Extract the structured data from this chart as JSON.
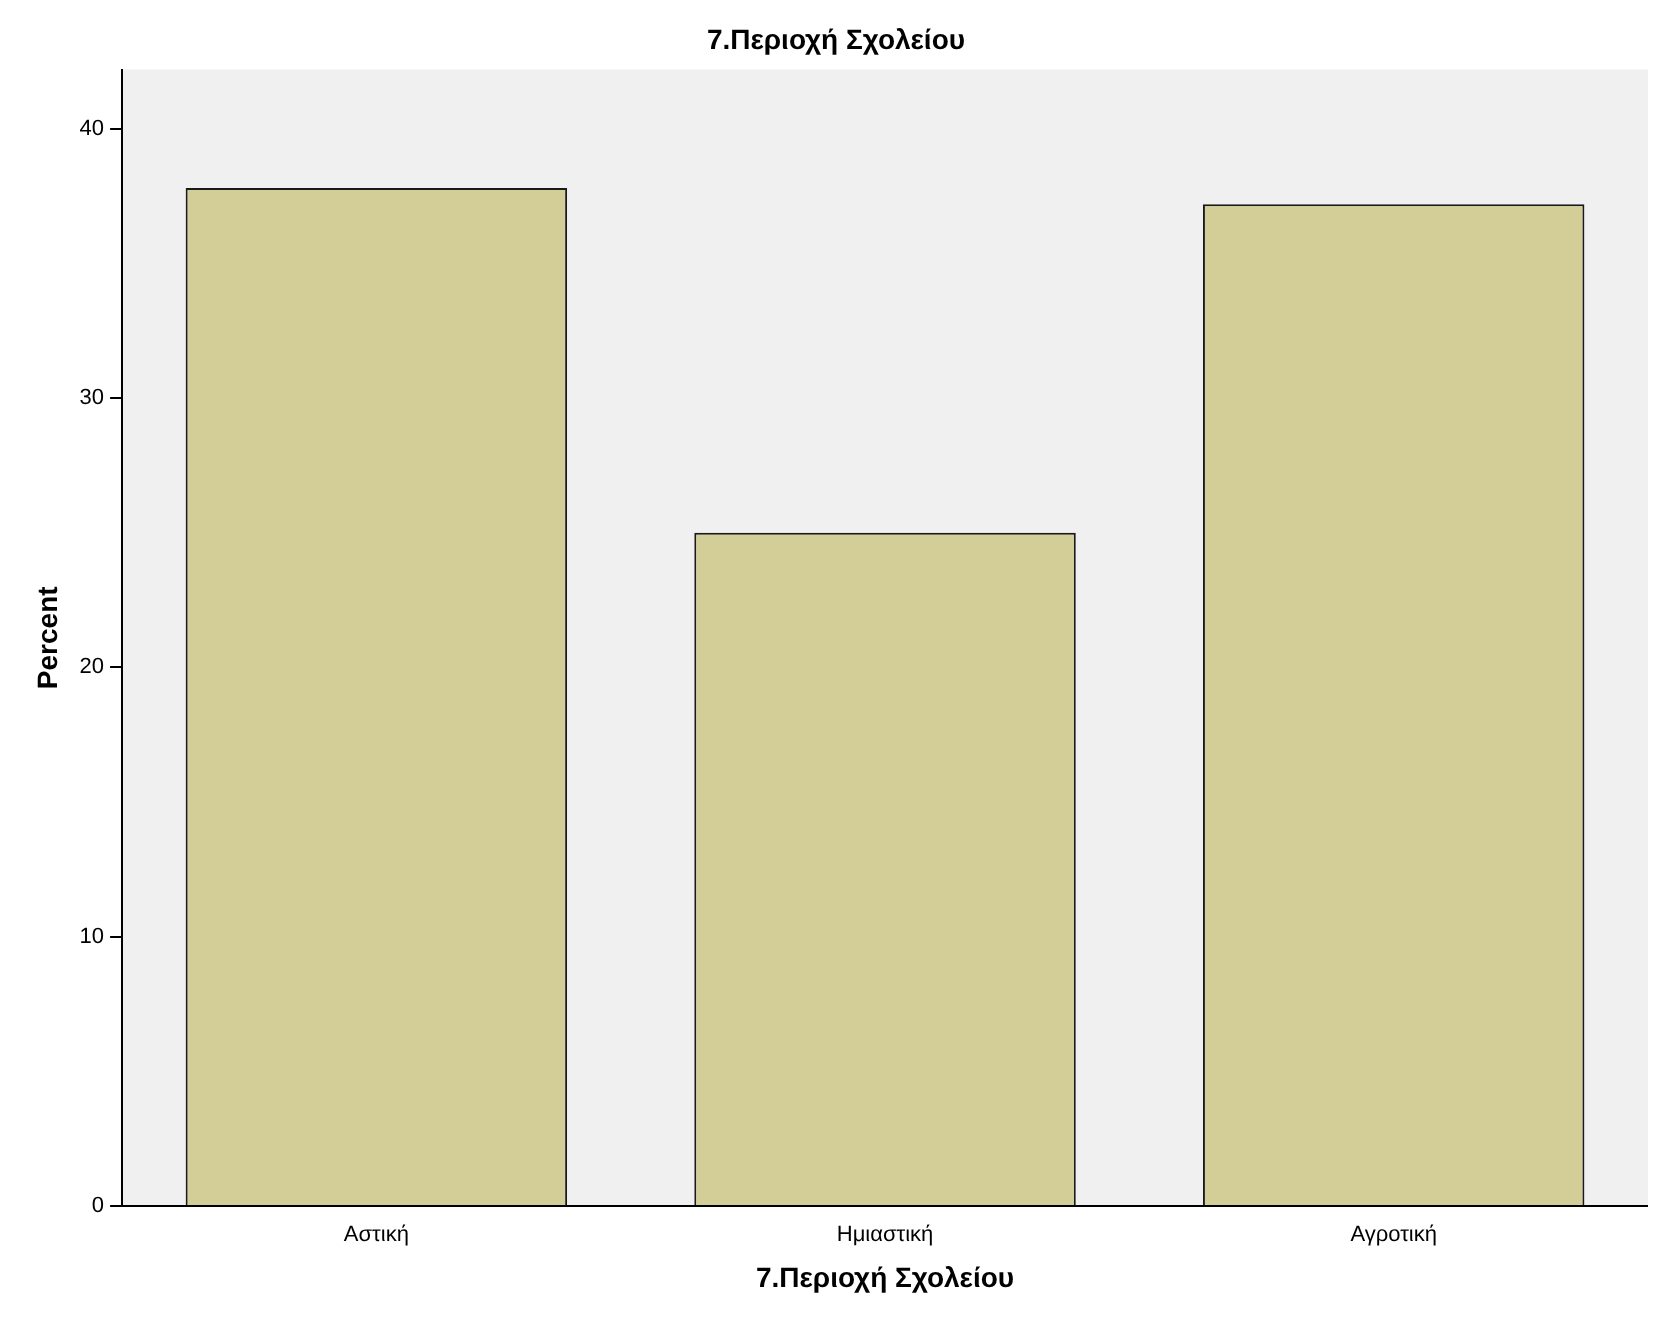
{
  "chart_data": {
    "type": "bar",
    "title": "7.Περιοχή Σχολείου",
    "xlabel": "7.Περιοχή Σχολείου",
    "ylabel": "Percent",
    "categories": [
      "Αστική",
      "Ημιαστική",
      "Αγροτική"
    ],
    "values": [
      37.8,
      25.0,
      37.2
    ],
    "color": "#d3ce98",
    "ylim": [
      0,
      42.2
    ],
    "yticks": [
      0,
      10,
      20,
      30,
      40
    ],
    "grid": false,
    "legend": false
  }
}
